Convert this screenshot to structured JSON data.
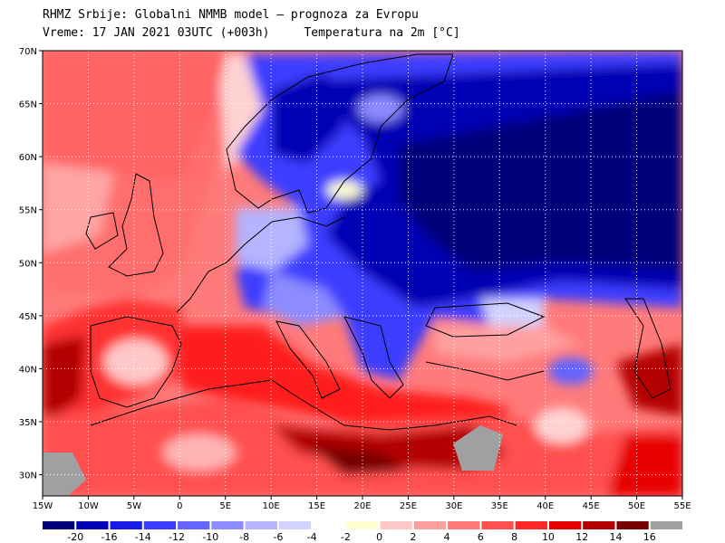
{
  "header": {
    "line1": "RHMZ Srbije: Globalni NMMB model — prognoza za Evropu",
    "line2_time": "Vreme: 17 JAN 2021 03UTC (+003h)",
    "line2_var": "Temperatura na 2m [°C]"
  },
  "map": {
    "lon_range": [
      -15,
      55
    ],
    "lat_range": [
      28,
      70
    ],
    "lat_labels": [
      "70N",
      "65N",
      "60N",
      "55N",
      "50N",
      "45N",
      "40N",
      "35N",
      "30N"
    ],
    "lat_values": [
      70,
      65,
      60,
      55,
      50,
      45,
      40,
      35,
      30
    ],
    "lon_labels": [
      "15W",
      "10W",
      "5W",
      "0",
      "5E",
      "10E",
      "15E",
      "20E",
      "25E",
      "30E",
      "35E",
      "40E",
      "45E",
      "50E",
      "55E"
    ],
    "lon_values": [
      -15,
      -10,
      -5,
      0,
      5,
      10,
      15,
      20,
      25,
      30,
      35,
      40,
      45,
      50,
      55
    ],
    "grid": "dotted"
  },
  "legend": {
    "colors": [
      "#00007a",
      "#0000b4",
      "#1a1ae6",
      "#3c3cff",
      "#6464ff",
      "#8c8cff",
      "#b4b4ff",
      "#d2d2ff",
      "#ffffff",
      "#ffffd2",
      "#ffc8c8",
      "#ffa0a0",
      "#ff7878",
      "#ff5050",
      "#ff2828",
      "#e60000",
      "#b40000",
      "#780000",
      "#a0a0a0"
    ],
    "labels": [
      "-20",
      "-16",
      "-14",
      "-12",
      "-10",
      "-8",
      "-6",
      "-4",
      "-2",
      "0",
      "2",
      "4",
      "6",
      "8",
      "10",
      "12",
      "14",
      "16"
    ]
  }
}
